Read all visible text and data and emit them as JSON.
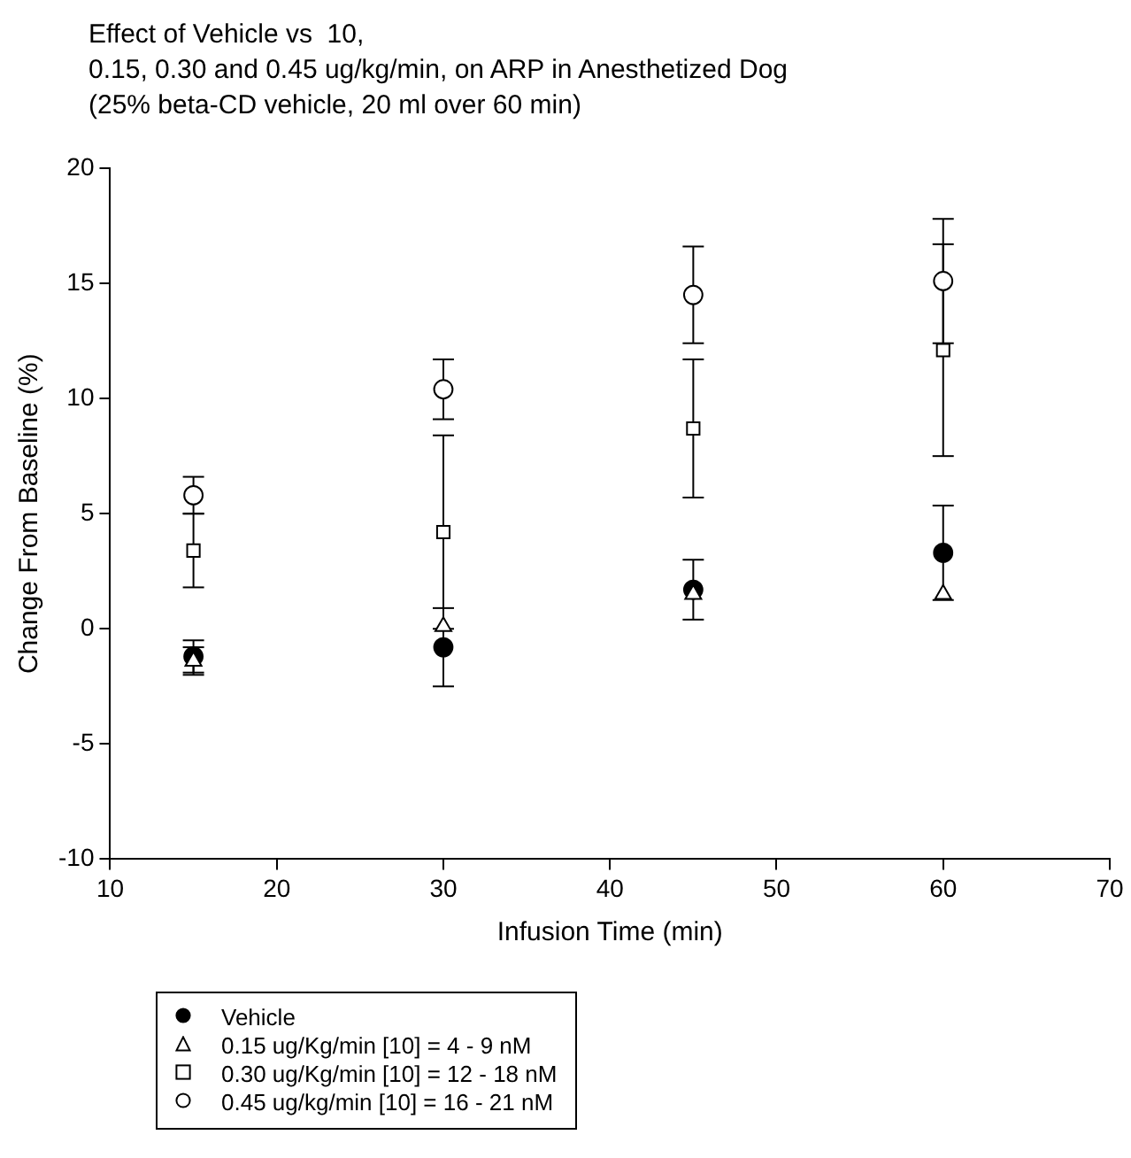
{
  "chart_data": {
    "type": "scatter",
    "title": "Effect of Vehicle vs  10,\n0.15, 0.30 and 0.45 ug/kg/min, on ARP in Anesthetized Dog\n(25% beta-CD vehicle, 20 ml over 60 min)",
    "xlabel": "Infusion Time (min)",
    "ylabel": "Change From Baseline (%)",
    "x": [
      15,
      30,
      45,
      60
    ],
    "series": [
      {
        "name": "Vehicle",
        "color": "#000000",
        "marker": "circle",
        "values": [
          -1.2,
          -0.8,
          1.7,
          3.3
        ],
        "errors": [
          0.7,
          1.7,
          1.3,
          2.05
        ]
      },
      {
        "name": "0.15 ug/Kg/min [10] = 4 - 9 nM",
        "color": "#ffffff",
        "marker": "triangle",
        "values": [
          -1.4,
          0.1,
          1.5,
          1.5
        ],
        "errors": [
          0.6,
          null,
          null,
          null
        ]
      },
      {
        "name": "0.30 ug/Kg/min [10] = 12 - 18 nM",
        "color": "#ffffff",
        "marker": "square",
        "values": [
          3.4,
          4.2,
          8.7,
          12.1
        ],
        "errors": [
          1.6,
          4.2,
          3.0,
          4.6
        ]
      },
      {
        "name": "0.45 ug/kg/min [10] = 16 - 21 nM",
        "color": "#ffffff",
        "marker": "circle",
        "values": [
          5.8,
          10.4,
          14.5,
          15.1
        ],
        "errors": [
          0.8,
          1.3,
          2.1,
          2.7
        ]
      }
    ],
    "xlim": [
      10,
      70
    ],
    "xticks": [
      10,
      20,
      30,
      40,
      50,
      60,
      70
    ],
    "ylim": [
      -10,
      20
    ],
    "yticks": [
      -10,
      -5,
      0,
      5,
      10,
      15,
      20
    ],
    "grid": false,
    "legend": "bottom left"
  }
}
